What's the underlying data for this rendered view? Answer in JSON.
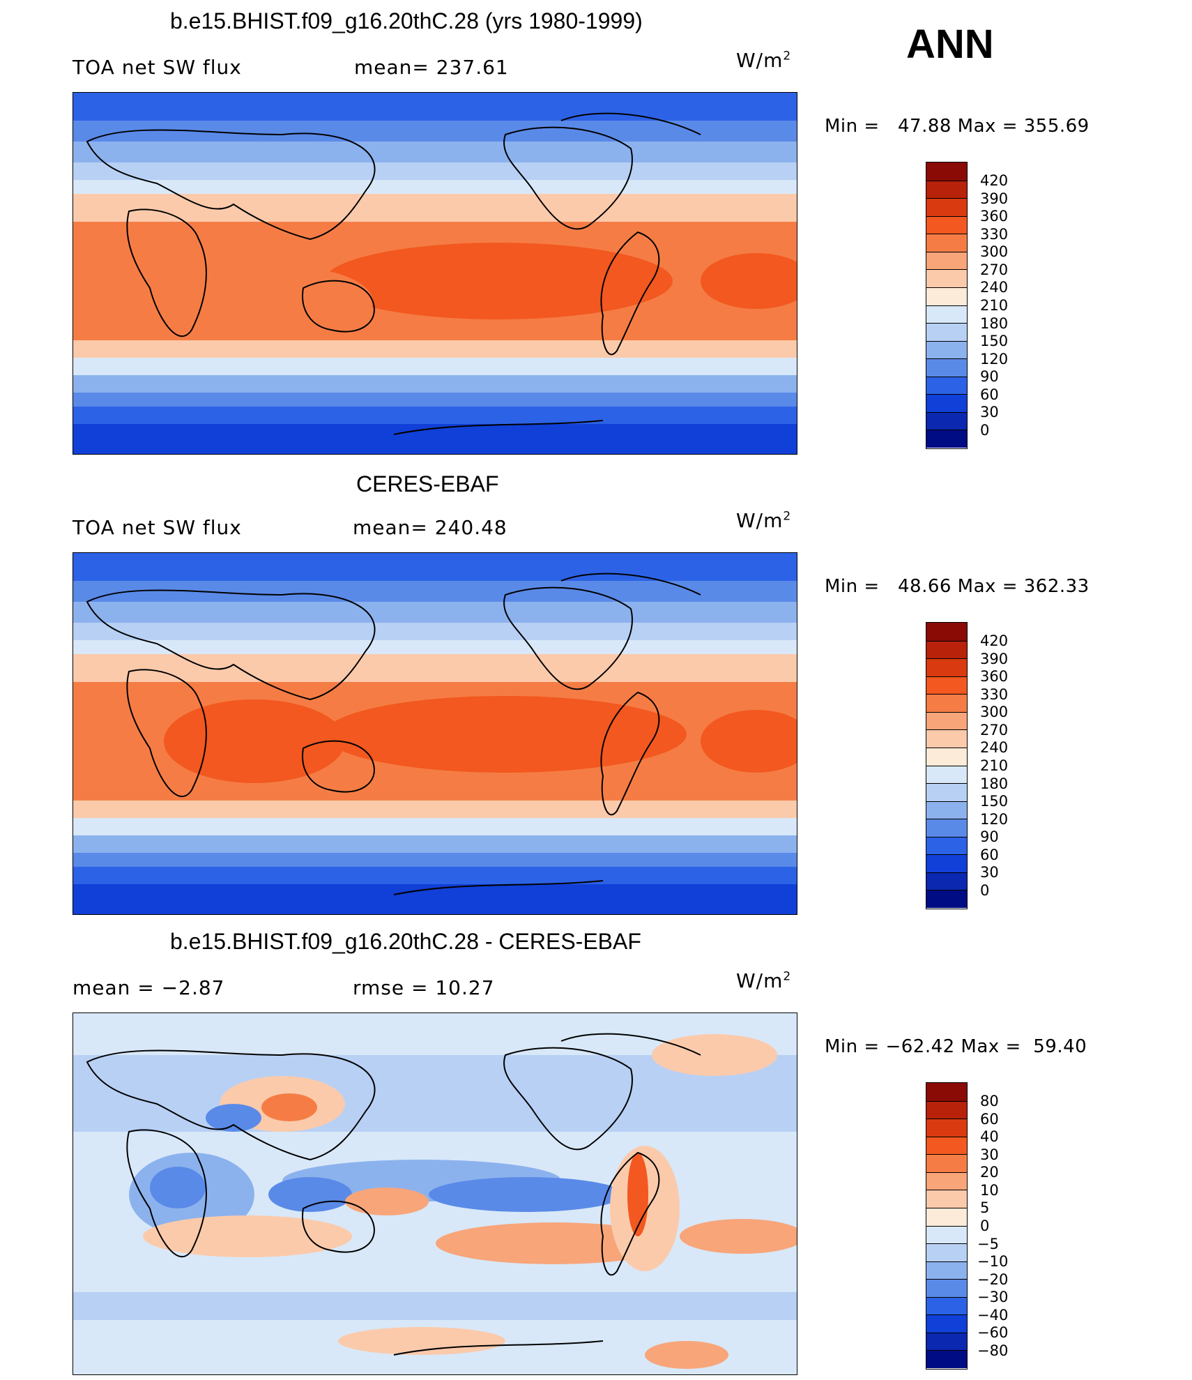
{
  "header": {
    "season": "ANN"
  },
  "panels": [
    {
      "title": "b.e15.BHIST.f09_g16.20thC.28 (yrs 1980-1999)",
      "left_label": "TOA net SW flux",
      "mid_label": "mean=  237.61",
      "units": "W/m",
      "units_sup": "2",
      "minmax": "Min =   47.88 Max = 355.69",
      "colorbar_labels": [
        "420",
        "390",
        "360",
        "330",
        "300",
        "270",
        "240",
        "210",
        "180",
        "150",
        "120",
        "90",
        "60",
        "30",
        "0"
      ],
      "colors": [
        "#8a0b06",
        "#b8210a",
        "#d93a10",
        "#f2581f",
        "#f57d45",
        "#f8a57a",
        "#fbcaab",
        "#fdebd9",
        "#d8e8f8",
        "#b8d0f4",
        "#8cb2ee",
        "#5a8ae8",
        "#2c62e6",
        "#1040d8",
        "#0a28b0",
        "#000c84"
      ]
    },
    {
      "title": "CERES-EBAF",
      "left_label": "TOA net SW flux",
      "mid_label": "mean=  240.48",
      "units": "W/m",
      "units_sup": "2",
      "minmax": "Min =   48.66 Max = 362.33",
      "colorbar_labels": [
        "420",
        "390",
        "360",
        "330",
        "300",
        "270",
        "240",
        "210",
        "180",
        "150",
        "120",
        "90",
        "60",
        "30",
        "0"
      ],
      "colors": [
        "#8a0b06",
        "#b8210a",
        "#d93a10",
        "#f2581f",
        "#f57d45",
        "#f8a57a",
        "#fbcaab",
        "#fdebd9",
        "#d8e8f8",
        "#b8d0f4",
        "#8cb2ee",
        "#5a8ae8",
        "#2c62e6",
        "#1040d8",
        "#0a28b0",
        "#000c84"
      ]
    },
    {
      "title": "b.e15.BHIST.f09_g16.20thC.28 - CERES-EBAF",
      "left_label": "mean =   −2.87",
      "mid_label": "rmse =   10.27",
      "units": "W/m",
      "units_sup": "2",
      "minmax": "Min = −62.42 Max =  59.40",
      "colorbar_labels": [
        "80",
        "60",
        "40",
        "30",
        "20",
        "10",
        "5",
        "0",
        "−5",
        "−10",
        "−20",
        "−30",
        "−40",
        "−60",
        "−80"
      ],
      "colors": [
        "#8a0b06",
        "#b8210a",
        "#d93a10",
        "#f2581f",
        "#f57d45",
        "#f8a57a",
        "#fbcaab",
        "#fdebd9",
        "#d8e8f8",
        "#b8d0f4",
        "#8cb2ee",
        "#5a8ae8",
        "#2c62e6",
        "#1040d8",
        "#0a28b0",
        "#000c84"
      ]
    }
  ]
}
